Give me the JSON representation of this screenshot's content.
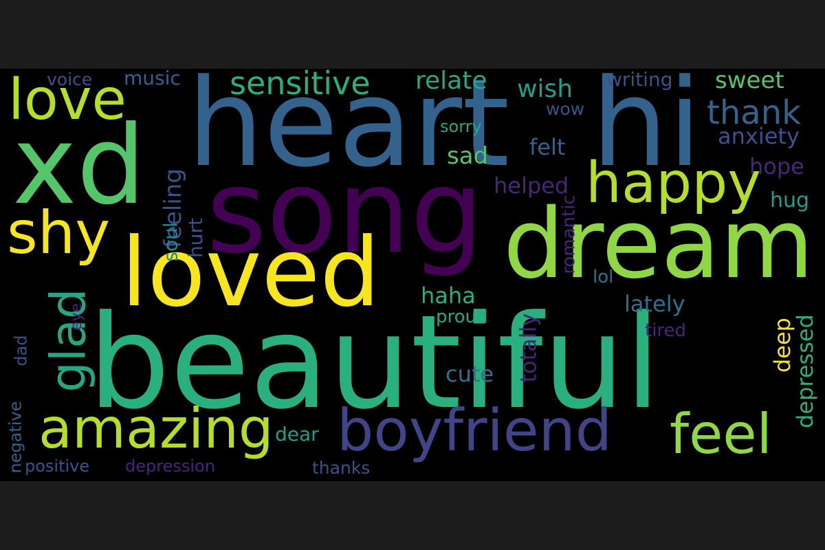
{
  "words": {
    "beautiful": "beautiful",
    "heart": "heart",
    "hi": "hi",
    "song": "song",
    "xd": "xd",
    "dream": "dream",
    "loved": "loved",
    "love": "love",
    "shy": "shy",
    "happy": "happy",
    "glad": "glad",
    "amazing": "amazing",
    "boyfriend": "boyfriend",
    "feel": "feel",
    "sensitive": "sensitive",
    "relate": "relate",
    "wish": "wish",
    "thank": "thank",
    "sweet": "sweet",
    "writing": "writing",
    "voice": "voice",
    "music": "music",
    "anxiety": "anxiety",
    "wow": "wow",
    "sorry": "sorry",
    "felt": "felt",
    "sad": "sad",
    "feeling": "feeling",
    "soul": "soul",
    "hope": "hope",
    "helped": "helped",
    "hug": "hug",
    "hurt": "hurt",
    "romantic": "romantic",
    "lol": "lol",
    "lately": "lately",
    "haha": "haha",
    "proud": "proud",
    "tired": "tired",
    "eye": "eye",
    "dad": "dad",
    "deep": "deep",
    "depressed": "depressed",
    "totally": "totally",
    "cute": "cute",
    "negative": "negative",
    "dear": "dear",
    "positive": "positive",
    "depression": "depression",
    "thanks": "thanks"
  },
  "colors": {
    "background": "#000000",
    "frame": "#1c1c1c"
  }
}
